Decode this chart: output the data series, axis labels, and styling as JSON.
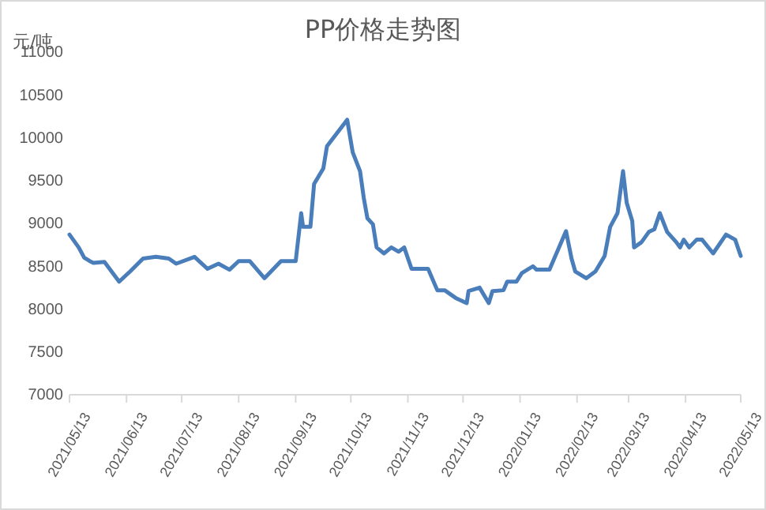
{
  "chart_data": {
    "type": "line",
    "title": "PP价格走势图",
    "ylabel": "元/吨",
    "x": [
      "2021-05-13",
      "2021-05-18",
      "2021-05-21",
      "2021-05-24",
      "2021-05-26",
      "2021-06-01",
      "2021-06-09",
      "2021-06-15",
      "2021-06-22",
      "2021-06-29",
      "2021-07-06",
      "2021-07-10",
      "2021-07-20",
      "2021-07-27",
      "2021-08-02",
      "2021-08-08",
      "2021-08-13",
      "2021-08-19",
      "2021-08-27",
      "2021-09-05",
      "2021-09-13",
      "2021-09-16",
      "2021-09-17",
      "2021-09-21",
      "2021-09-23",
      "2021-09-28",
      "2021-09-30",
      "2021-10-11",
      "2021-10-14",
      "2021-10-18",
      "2021-10-20",
      "2021-10-22",
      "2021-10-25",
      "2021-10-27",
      "2021-10-31",
      "2021-11-04",
      "2021-11-08",
      "2021-11-11",
      "2021-11-15",
      "2021-11-24",
      "2021-11-29",
      "2021-12-03",
      "2021-12-09",
      "2021-12-15",
      "2021-12-16",
      "2021-12-22",
      "2021-12-27",
      "2021-12-29",
      "2022-01-04",
      "2022-01-06",
      "2022-01-11",
      "2022-01-14",
      "2022-01-20",
      "2022-01-22",
      "2022-01-29",
      "2022-02-07",
      "2022-02-10",
      "2022-02-12",
      "2022-02-18",
      "2022-02-23",
      "2022-02-28",
      "2022-03-03",
      "2022-03-07",
      "2022-03-10",
      "2022-03-12",
      "2022-03-15",
      "2022-03-16",
      "2022-03-20",
      "2022-03-24",
      "2022-03-27",
      "2022-03-30",
      "2022-04-03",
      "2022-04-08",
      "2022-04-10",
      "2022-04-12",
      "2022-04-15",
      "2022-04-19",
      "2022-04-22",
      "2022-04-28",
      "2022-05-05",
      "2022-05-10",
      "2022-05-13"
    ],
    "series": [
      {
        "color": "#4a7ebb",
        "values": [
          8870,
          8720,
          8600,
          8560,
          8540,
          8550,
          8320,
          8440,
          8590,
          8610,
          8590,
          8530,
          8610,
          8470,
          8530,
          8460,
          8560,
          8560,
          8360,
          8560,
          8560,
          9120,
          8960,
          8960,
          9460,
          9640,
          9900,
          10210,
          9830,
          9610,
          9300,
          9060,
          8990,
          8720,
          8650,
          8720,
          8670,
          8720,
          8470,
          8470,
          8220,
          8220,
          8130,
          8070,
          8210,
          8250,
          8070,
          8210,
          8220,
          8320,
          8320,
          8420,
          8500,
          8460,
          8460,
          8910,
          8590,
          8440,
          8360,
          8440,
          8620,
          8960,
          9120,
          9610,
          9240,
          9030,
          8720,
          8780,
          8900,
          8930,
          9120,
          8900,
          8780,
          8720,
          8810,
          8720,
          8810,
          8810,
          8650,
          8870,
          8810,
          8620
        ]
      }
    ],
    "xlim": [
      "2021-05-13",
      "2022-05-13"
    ],
    "xticks": [
      {
        "value": "2021-05-13",
        "label": "2021/05/13"
      },
      {
        "value": "2021-06-13",
        "label": "2021/06/13"
      },
      {
        "value": "2021-07-13",
        "label": "2021/07/13"
      },
      {
        "value": "2021-08-13",
        "label": "2021/08/13"
      },
      {
        "value": "2021-09-13",
        "label": "2021/09/13"
      },
      {
        "value": "2021-10-13",
        "label": "2021/10/13"
      },
      {
        "value": "2021-11-13",
        "label": "2021/11/13"
      },
      {
        "value": "2021-12-13",
        "label": "2021/12/13"
      },
      {
        "value": "2022-01-13",
        "label": "2022/01/13"
      },
      {
        "value": "2022-02-13",
        "label": "2022/02/13"
      },
      {
        "value": "2022-03-13",
        "label": "2022/03/13"
      },
      {
        "value": "2022-04-13",
        "label": "2022/04/13"
      },
      {
        "value": "2022-05-13",
        "label": "2022/05/13"
      }
    ],
    "ylim": [
      7000,
      11000
    ],
    "yticks": [
      7000,
      7500,
      8000,
      8500,
      9000,
      9500,
      10000,
      10500,
      11000
    ],
    "grid": false,
    "marker": "none",
    "line_style": "solid"
  }
}
